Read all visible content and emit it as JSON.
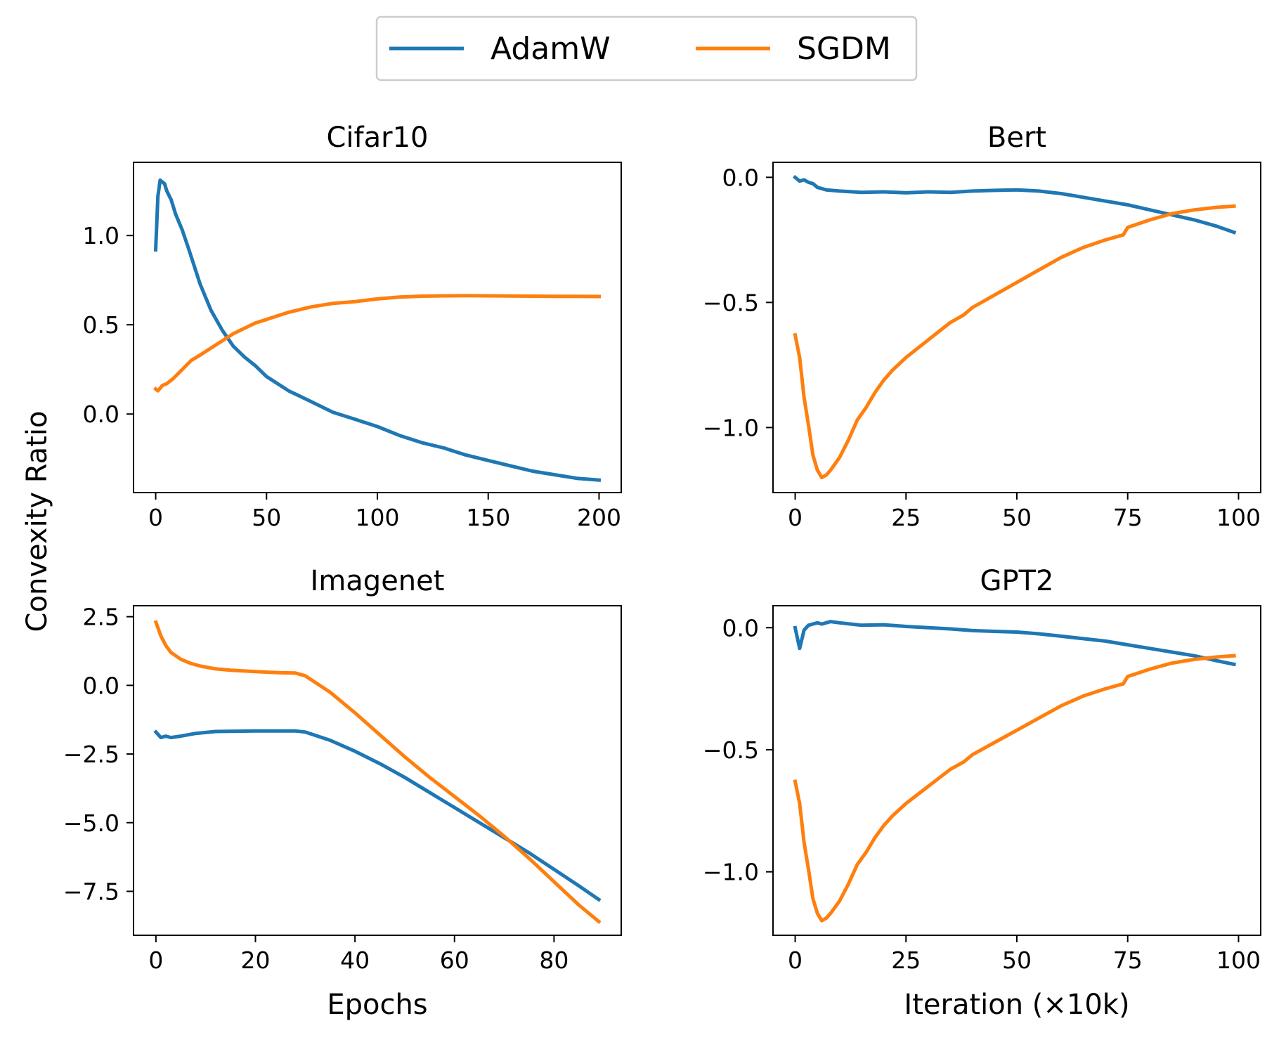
{
  "legend": {
    "entries": [
      {
        "name": "AdamW",
        "color": "#1f77b4"
      },
      {
        "name": "SGDM",
        "color": "#ff7f0e"
      }
    ],
    "placement": "top-center"
  },
  "shared_ylabel": "Convexity Ratio",
  "chart_data": [
    {
      "type": "line",
      "title": "Cifar10",
      "xlabel": "",
      "ylabel": "",
      "xlim": [
        -10,
        210
      ],
      "ylim": [
        -0.44,
        1.41
      ],
      "xticks": [
        0,
        50,
        100,
        150,
        200
      ],
      "yticks": [
        0.0,
        0.5,
        1.0
      ],
      "xtick_labels": [
        "0",
        "50",
        "100",
        "150",
        "200"
      ],
      "ytick_labels": [
        "0.0",
        "0.5",
        "1.0"
      ],
      "series": [
        {
          "name": "AdamW",
          "color": "#1f77b4",
          "x": [
            0,
            1,
            2,
            3,
            4,
            5,
            7,
            9,
            12,
            15,
            20,
            25,
            30,
            35,
            40,
            45,
            50,
            55,
            60,
            65,
            70,
            80,
            90,
            100,
            110,
            120,
            130,
            140,
            150,
            160,
            170,
            180,
            190,
            200
          ],
          "y": [
            0.92,
            1.22,
            1.31,
            1.3,
            1.29,
            1.25,
            1.2,
            1.12,
            1.03,
            0.92,
            0.73,
            0.58,
            0.47,
            0.38,
            0.32,
            0.27,
            0.21,
            0.17,
            0.13,
            0.1,
            0.07,
            0.01,
            -0.03,
            -0.07,
            -0.12,
            -0.16,
            -0.19,
            -0.23,
            -0.26,
            -0.29,
            -0.32,
            -0.34,
            -0.36,
            -0.37
          ]
        },
        {
          "name": "SGDM",
          "color": "#ff7f0e",
          "x": [
            0,
            1,
            3,
            5,
            8,
            12,
            16,
            20,
            25,
            30,
            35,
            40,
            45,
            50,
            60,
            70,
            80,
            90,
            100,
            110,
            120,
            130,
            140,
            150,
            160,
            170,
            180,
            190,
            200
          ],
          "y": [
            0.14,
            0.13,
            0.16,
            0.17,
            0.2,
            0.25,
            0.3,
            0.33,
            0.37,
            0.41,
            0.45,
            0.48,
            0.51,
            0.53,
            0.57,
            0.6,
            0.62,
            0.63,
            0.645,
            0.655,
            0.66,
            0.662,
            0.663,
            0.662,
            0.661,
            0.66,
            0.659,
            0.659,
            0.658
          ]
        }
      ]
    },
    {
      "type": "line",
      "title": "Bert",
      "xlabel": "",
      "ylabel": "",
      "xlim": [
        -5,
        105
      ],
      "ylim": [
        -1.26,
        0.06
      ],
      "xticks": [
        0,
        25,
        50,
        75,
        100
      ],
      "yticks": [
        0.0,
        -0.5,
        -1.0
      ],
      "xtick_labels": [
        "0",
        "25",
        "50",
        "75",
        "100"
      ],
      "ytick_labels": [
        "0.0",
        "−0.5",
        "−1.0"
      ],
      "series": [
        {
          "name": "AdamW",
          "color": "#1f77b4",
          "x": [
            0,
            1,
            2,
            3,
            4,
            5,
            7,
            10,
            15,
            20,
            25,
            30,
            35,
            40,
            45,
            50,
            55,
            60,
            65,
            70,
            75,
            80,
            85,
            90,
            95,
            99
          ],
          "y": [
            0.0,
            -0.015,
            -0.01,
            -0.02,
            -0.025,
            -0.04,
            -0.05,
            -0.055,
            -0.06,
            -0.058,
            -0.062,
            -0.058,
            -0.06,
            -0.055,
            -0.052,
            -0.05,
            -0.055,
            -0.065,
            -0.08,
            -0.095,
            -0.11,
            -0.13,
            -0.15,
            -0.17,
            -0.195,
            -0.22
          ]
        },
        {
          "name": "SGDM",
          "color": "#ff7f0e",
          "x": [
            0,
            1,
            2,
            3,
            4,
            5,
            6,
            7,
            8,
            10,
            12,
            14,
            16,
            18,
            20,
            22,
            25,
            30,
            35,
            38,
            40,
            45,
            50,
            55,
            60,
            65,
            70,
            74,
            75,
            80,
            85,
            90,
            95,
            99
          ],
          "y": [
            -0.63,
            -0.72,
            -0.88,
            -0.99,
            -1.11,
            -1.17,
            -1.2,
            -1.19,
            -1.17,
            -1.12,
            -1.05,
            -0.97,
            -0.92,
            -0.86,
            -0.81,
            -0.77,
            -0.72,
            -0.65,
            -0.58,
            -0.55,
            -0.52,
            -0.47,
            -0.42,
            -0.37,
            -0.32,
            -0.28,
            -0.25,
            -0.23,
            -0.2,
            -0.17,
            -0.145,
            -0.13,
            -0.12,
            -0.115
          ]
        }
      ]
    },
    {
      "type": "line",
      "title": "Imagenet",
      "xlabel": "Epochs",
      "ylabel": "",
      "xlim": [
        -4.5,
        93.5
      ],
      "ylim": [
        -9.1,
        2.9
      ],
      "xticks": [
        0,
        20,
        40,
        60,
        80
      ],
      "yticks": [
        2.5,
        0.0,
        -2.5,
        -5.0,
        -7.5
      ],
      "xtick_labels": [
        "0",
        "20",
        "40",
        "60",
        "80"
      ],
      "ytick_labels": [
        "2.5",
        "0.0",
        "−2.5",
        "−5.0",
        "−7.5"
      ],
      "series": [
        {
          "name": "AdamW",
          "color": "#1f77b4",
          "x": [
            0,
            1,
            2,
            3,
            5,
            8,
            12,
            16,
            20,
            25,
            28,
            30,
            35,
            40,
            45,
            50,
            55,
            60,
            65,
            70,
            75,
            80,
            85,
            89
          ],
          "y": [
            -1.7,
            -1.9,
            -1.85,
            -1.9,
            -1.85,
            -1.75,
            -1.68,
            -1.67,
            -1.66,
            -1.66,
            -1.66,
            -1.7,
            -2.0,
            -2.4,
            -2.85,
            -3.35,
            -3.9,
            -4.45,
            -5.0,
            -5.55,
            -6.1,
            -6.7,
            -7.3,
            -7.8
          ]
        },
        {
          "name": "SGDM",
          "color": "#ff7f0e",
          "x": [
            0,
            1,
            2,
            3,
            5,
            7,
            9,
            12,
            15,
            20,
            25,
            28,
            30,
            35,
            40,
            45,
            50,
            55,
            60,
            65,
            70,
            75,
            80,
            85,
            89
          ],
          "y": [
            2.3,
            1.8,
            1.45,
            1.2,
            0.95,
            0.8,
            0.7,
            0.6,
            0.55,
            0.5,
            0.46,
            0.45,
            0.35,
            -0.25,
            -1.0,
            -1.8,
            -2.6,
            -3.35,
            -4.05,
            -4.75,
            -5.5,
            -6.3,
            -7.15,
            -8.0,
            -8.6
          ]
        }
      ]
    },
    {
      "type": "line",
      "title": "GPT2",
      "xlabel": "Iteration (×10k)",
      "ylabel": "",
      "xlim": [
        -5,
        105
      ],
      "ylim": [
        -1.26,
        0.09
      ],
      "xticks": [
        0,
        25,
        50,
        75,
        100
      ],
      "yticks": [
        0.0,
        -0.5,
        -1.0
      ],
      "xtick_labels": [
        "0",
        "25",
        "50",
        "75",
        "100"
      ],
      "ytick_labels": [
        "0.0",
        "−0.5",
        "−1.0"
      ],
      "series": [
        {
          "name": "AdamW",
          "color": "#1f77b4",
          "x": [
            0,
            1,
            2,
            3,
            4,
            5,
            6,
            7,
            8,
            10,
            15,
            20,
            25,
            30,
            35,
            40,
            45,
            50,
            55,
            60,
            65,
            70,
            75,
            80,
            85,
            90,
            95,
            99
          ],
          "y": [
            0.0,
            -0.085,
            -0.01,
            0.01,
            0.015,
            0.02,
            0.015,
            0.02,
            0.025,
            0.02,
            0.01,
            0.012,
            0.005,
            0.0,
            -0.005,
            -0.012,
            -0.015,
            -0.018,
            -0.025,
            -0.035,
            -0.045,
            -0.055,
            -0.07,
            -0.085,
            -0.1,
            -0.115,
            -0.135,
            -0.15
          ]
        },
        {
          "name": "SGDM",
          "color": "#ff7f0e",
          "x": [
            0,
            1,
            2,
            3,
            4,
            5,
            6,
            7,
            8,
            10,
            12,
            14,
            16,
            18,
            20,
            22,
            25,
            30,
            35,
            38,
            40,
            45,
            50,
            55,
            60,
            65,
            70,
            74,
            75,
            80,
            85,
            90,
            95,
            99
          ],
          "y": [
            -0.63,
            -0.72,
            -0.88,
            -0.99,
            -1.11,
            -1.17,
            -1.2,
            -1.19,
            -1.17,
            -1.12,
            -1.05,
            -0.97,
            -0.92,
            -0.86,
            -0.81,
            -0.77,
            -0.72,
            -0.65,
            -0.58,
            -0.55,
            -0.52,
            -0.47,
            -0.42,
            -0.37,
            -0.32,
            -0.28,
            -0.25,
            -0.23,
            -0.2,
            -0.17,
            -0.145,
            -0.13,
            -0.12,
            -0.115
          ]
        }
      ]
    }
  ]
}
